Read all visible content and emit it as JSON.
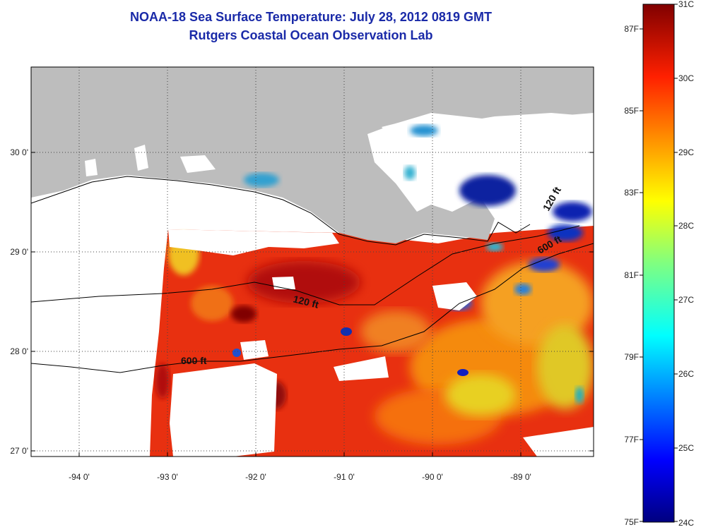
{
  "title": {
    "line1": "NOAA-18 Sea Surface Temperature:  July 28, 2012 0819 GMT",
    "line2": "Rutgers Coastal Ocean Observation Lab"
  },
  "map": {
    "lat_labels": [
      "30 0'",
      "29 0'",
      "28 0'",
      "27 0'"
    ],
    "lon_labels": [
      "-94 0'",
      "-93 0'",
      "-92 0'",
      "-91 0'",
      "-90 0'",
      "-89 0'"
    ],
    "contour_labels": [
      "120 ft",
      "600 ft",
      "600 ft",
      "120 ft"
    ]
  },
  "colorbar": {
    "fahrenheit_labels": [
      "87F",
      "85F",
      "83F",
      "81F",
      "79F",
      "77F",
      "75F"
    ],
    "celsius_labels": [
      "31C",
      "30C",
      "29C",
      "28C",
      "27C",
      "26C",
      "25C",
      "24C"
    ]
  },
  "colors": {
    "title": "#1a2aa8",
    "land": "#bdbdbd",
    "cloud": "#ffffff",
    "warm_sea": "#e83010",
    "scale_top": "#800000",
    "scale_bottom": "#000080"
  }
}
